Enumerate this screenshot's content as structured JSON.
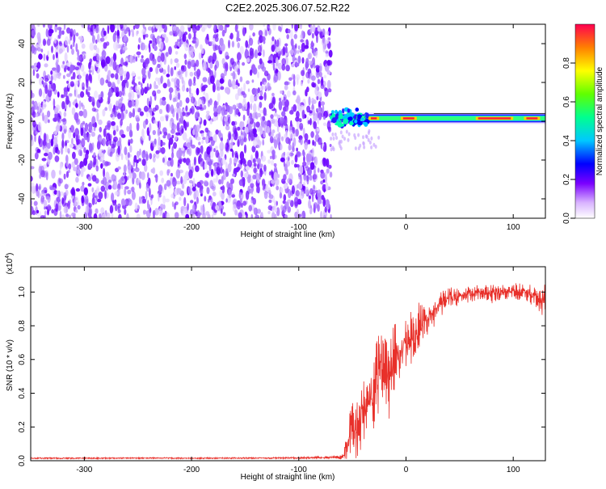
{
  "title": "C2E2.2025.306.07.52.R22",
  "chart_data": [
    {
      "type": "heatmap",
      "xlabel": "Height of straight line (km)",
      "ylabel": "Frequency (Hz)",
      "xlim": [
        -350,
        130
      ],
      "ylim": [
        -50,
        50
      ],
      "xticks": [
        -300,
        -200,
        -100,
        0,
        100
      ],
      "yticks": [
        -40,
        -20,
        0,
        20,
        40
      ],
      "noise_region_x": [
        -350,
        -70
      ],
      "signal_track": {
        "x_start": -70,
        "x_end": 130,
        "center_frequency_hz": 1.5,
        "peak_segments_x": [
          [
            -35,
            -25
          ],
          [
            -5,
            10
          ],
          [
            65,
            100
          ],
          [
            110,
            125
          ]
        ]
      },
      "colorbar": {
        "label": "Normalized spectral amplitude",
        "range": [
          0.0,
          1.0
        ],
        "ticks": [
          0.0,
          0.2,
          0.4,
          0.6,
          0.8
        ],
        "tick_labels": [
          "0.0",
          "0.2",
          "0.4",
          "0.6",
          "0.8"
        ]
      }
    },
    {
      "type": "line",
      "xlabel": "Height of straight line (km)",
      "ylabel": "SNR (10 * v/v)",
      "y_multiplier_label": "(x10",
      "y_multiplier_exp": "4",
      "xlim": [
        -350,
        130
      ],
      "ylim": [
        0.0,
        1.15
      ],
      "xticks": [
        -300,
        -200,
        -100,
        0,
        100
      ],
      "yticks": [
        0.0,
        0.2,
        0.4,
        0.6,
        0.8,
        1.0
      ],
      "ytick_labels": [
        "0.0",
        "0.2",
        "0.4",
        "0.6",
        "0.8",
        "1.0"
      ],
      "series": [
        {
          "name": "SNR",
          "color": "#e8302a",
          "x": [
            -350,
            -300,
            -250,
            -200,
            -150,
            -100,
            -70,
            -58,
            -55,
            -50,
            -45,
            -40,
            -35,
            -30,
            -25,
            -20,
            -15,
            -10,
            -5,
            0,
            5,
            10,
            15,
            20,
            25,
            30,
            35,
            40,
            50,
            60,
            70,
            80,
            90,
            100,
            110,
            120,
            125,
            130
          ],
          "y": [
            0.015,
            0.015,
            0.016,
            0.015,
            0.016,
            0.017,
            0.02,
            0.03,
            0.1,
            0.22,
            0.18,
            0.3,
            0.35,
            0.42,
            0.55,
            0.58,
            0.5,
            0.62,
            0.64,
            0.7,
            0.74,
            0.76,
            0.82,
            0.85,
            0.88,
            0.92,
            0.95,
            0.97,
            0.98,
            0.99,
            1.0,
            0.99,
            1.0,
            1.01,
            1.0,
            0.98,
            0.95,
            0.97
          ],
          "spread": [
            0.005,
            0.005,
            0.005,
            0.005,
            0.005,
            0.006,
            0.01,
            0.03,
            0.12,
            0.2,
            0.22,
            0.25,
            0.2,
            0.28,
            0.3,
            0.25,
            0.32,
            0.3,
            0.2,
            0.25,
            0.22,
            0.25,
            0.15,
            0.12,
            0.12,
            0.1,
            0.09,
            0.08,
            0.07,
            0.06,
            0.06,
            0.07,
            0.06,
            0.06,
            0.07,
            0.08,
            0.12,
            0.1
          ]
        }
      ]
    }
  ]
}
